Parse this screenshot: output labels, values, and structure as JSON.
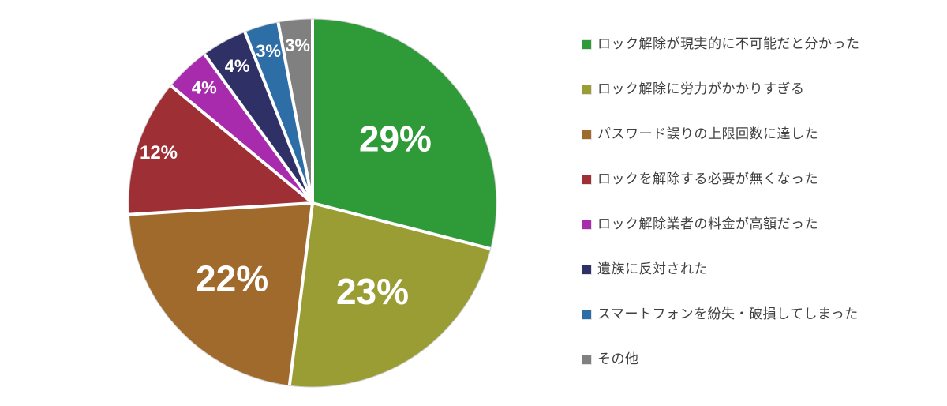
{
  "page": {
    "background": "#ffffff"
  },
  "chart_data": {
    "type": "pie",
    "title": "",
    "unit": "%",
    "direction": "clockwise",
    "start_angle_deg": 0,
    "legend_position": "right",
    "grid": false,
    "slice_border_color": "#ffffff",
    "outline_color": "#cfcfcf",
    "data_label_color": "#ffffff",
    "legend_text_color": "#3f3f3f",
    "slices": [
      {
        "label": "ロック解除が現実的に不可能だと分かった",
        "value": 29,
        "percent_label": "29%",
        "color": "#2f9b38"
      },
      {
        "label": "ロック解除に労力がかかりすぎる",
        "value": 23,
        "percent_label": "23%",
        "color": "#999d33"
      },
      {
        "label": "パスワード誤りの上限回数に達した",
        "value": 22,
        "percent_label": "22%",
        "color": "#a16a2d"
      },
      {
        "label": "ロックを解除する必要が無くなった",
        "value": 12,
        "percent_label": "12%",
        "color": "#9e2f35"
      },
      {
        "label": "ロック解除業者の料金が高額だった",
        "value": 4,
        "percent_label": "4%",
        "color": "#a82bae"
      },
      {
        "label": "遺族に反対された",
        "value": 4,
        "percent_label": "4%",
        "color": "#2f3166"
      },
      {
        "label": "スマートフォンを紛失・破損してしまった",
        "value": 3,
        "percent_label": "3%",
        "color": "#2e6ea6"
      },
      {
        "label": "その他",
        "value": 3,
        "percent_label": "3%",
        "color": "#808080"
      }
    ]
  }
}
